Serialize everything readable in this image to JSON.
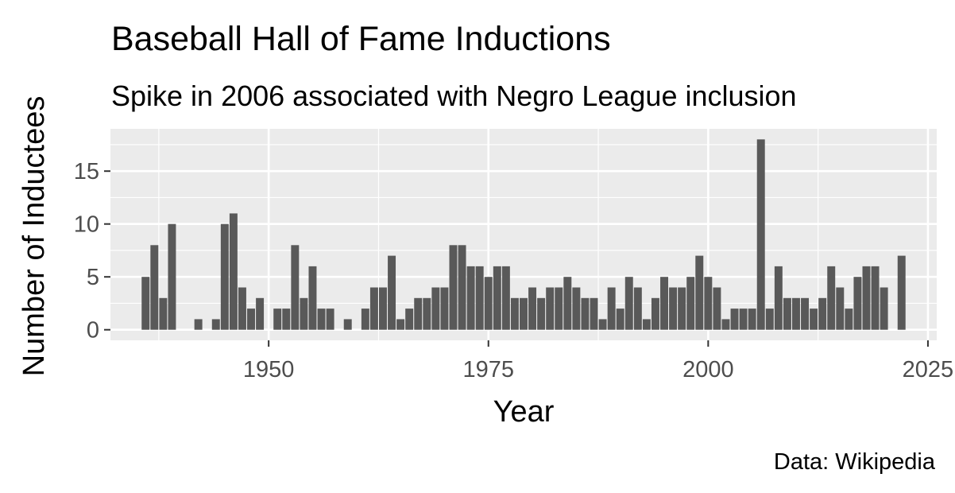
{
  "chart_data": {
    "type": "bar",
    "title": "Baseball Hall of Fame Inductions",
    "subtitle": "Spike in 2006 associated with Negro League inclusion",
    "xlabel": "Year",
    "ylabel": "Number of Inductees",
    "caption": "Data: Wikipedia",
    "xlim": [
      1932,
      2026
    ],
    "ylim": [
      -1,
      19
    ],
    "x_ticks": [
      1950,
      1975,
      2000,
      2025
    ],
    "y_ticks": [
      0,
      5,
      10,
      15
    ],
    "grid": true,
    "colors": {
      "bar": "#595959",
      "panel": "#ebebeb",
      "grid": "#ffffff"
    },
    "x": [
      1936,
      1937,
      1938,
      1939,
      1942,
      1944,
      1945,
      1946,
      1947,
      1948,
      1949,
      1951,
      1952,
      1953,
      1954,
      1955,
      1956,
      1957,
      1959,
      1961,
      1962,
      1963,
      1964,
      1965,
      1966,
      1967,
      1968,
      1969,
      1970,
      1971,
      1972,
      1973,
      1974,
      1975,
      1976,
      1977,
      1978,
      1979,
      1980,
      1981,
      1982,
      1983,
      1984,
      1985,
      1986,
      1987,
      1988,
      1989,
      1990,
      1991,
      1992,
      1993,
      1994,
      1995,
      1996,
      1997,
      1998,
      1999,
      2000,
      2001,
      2002,
      2003,
      2004,
      2005,
      2006,
      2007,
      2008,
      2009,
      2010,
      2011,
      2012,
      2013,
      2014,
      2015,
      2016,
      2017,
      2018,
      2019,
      2020,
      2022
    ],
    "values": [
      5,
      8,
      3,
      10,
      1,
      1,
      10,
      11,
      4,
      2,
      3,
      2,
      2,
      8,
      3,
      6,
      2,
      2,
      1,
      2,
      4,
      4,
      7,
      1,
      2,
      3,
      3,
      4,
      4,
      8,
      8,
      6,
      6,
      5,
      6,
      6,
      3,
      3,
      4,
      3,
      4,
      4,
      5,
      4,
      3,
      3,
      1,
      4,
      2,
      5,
      4,
      1,
      3,
      5,
      4,
      4,
      5,
      7,
      5,
      4,
      1,
      2,
      2,
      2,
      18,
      2,
      6,
      3,
      3,
      3,
      2,
      3,
      6,
      4,
      2,
      5,
      6,
      6,
      4,
      7
    ]
  }
}
